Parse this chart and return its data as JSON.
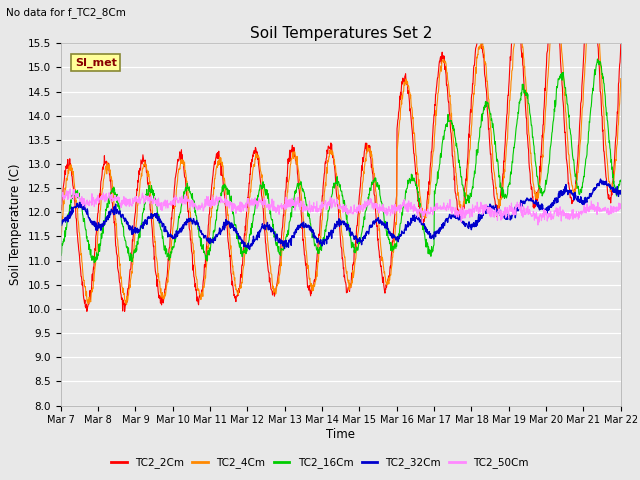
{
  "title": "Soil Temperatures Set 2",
  "subtitle": "No data for f_TC2_8Cm",
  "ylabel": "Soil Temperature (C)",
  "xlabel": "Time",
  "ylim": [
    8.0,
    15.5
  ],
  "yticks": [
    8.0,
    8.5,
    9.0,
    9.5,
    10.0,
    10.5,
    11.0,
    11.5,
    12.0,
    12.5,
    13.0,
    13.5,
    14.0,
    14.5,
    15.0,
    15.5
  ],
  "xtick_labels": [
    "Mar 7",
    "Mar 8",
    "Mar 9",
    "Mar 10",
    "Mar 11",
    "Mar 12",
    "Mar 13",
    "Mar 14",
    "Mar 15",
    "Mar 16",
    "Mar 17",
    "Mar 18",
    "Mar 19",
    "Mar 20",
    "Mar 21",
    "Mar 22"
  ],
  "bg_color": "#e8e8e8",
  "plot_bg_color": "#e8e8e8",
  "series_colors": [
    "#ff0000",
    "#ff8800",
    "#00cc00",
    "#0000cc",
    "#ff88ff"
  ],
  "series_labels": [
    "TC2_2Cm",
    "TC2_4Cm",
    "TC2_16Cm",
    "TC2_32Cm",
    "TC2_50Cm"
  ],
  "legend_box_color": "#ffff99",
  "legend_box_border": "#aa8800",
  "legend_text": "SI_met",
  "n_points": 1440
}
